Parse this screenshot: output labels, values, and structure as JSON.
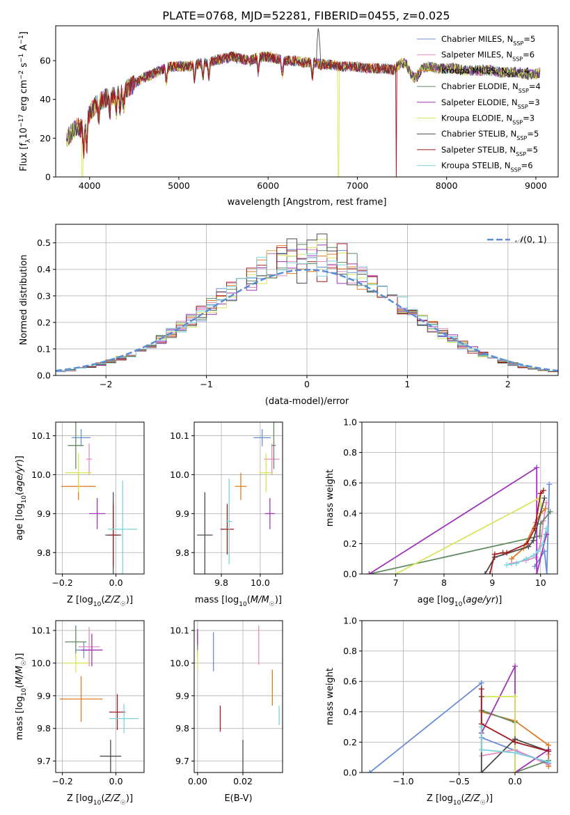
{
  "figure": {
    "title": "PLATE=0768, MJD=52281, FIBERID=0455, z=0.025"
  },
  "colors": {
    "chabrier_miles": "#6a8fd8",
    "salpeter_miles": "#e889c0",
    "kroupa_miles": "#dd7a22",
    "chabrier_elodie": "#5f8a62",
    "salpeter_elodie": "#9f34b8",
    "kroupa_elodie": "#d8e45a",
    "chabrier_stelib": "#4a4a4a",
    "salpeter_stelib": "#a11a1e",
    "kroupa_stelib": "#7bd4dc",
    "normal_line": "#5b8cd6",
    "grid": "#b0b0b0"
  },
  "chart_data": [
    {
      "id": "spectrum",
      "type": "line",
      "xlabel": "wavelength [Angstrom, rest frame]",
      "ylabel": "Flux [f_λ 10^-17 erg cm^-2 s^-1 A^-1]",
      "xlim": [
        3620,
        9250
      ],
      "ylim": [
        0,
        78
      ],
      "xticks": [
        4000,
        5000,
        6000,
        7000,
        8000,
        9000
      ],
      "yticks": [
        0,
        20,
        40,
        60
      ],
      "grid": false,
      "legend_position": "top-right",
      "continuum": {
        "x": [
          3750,
          3800,
          3850,
          3900,
          3950,
          4000,
          4100,
          4200,
          4300,
          4400,
          4500,
          4600,
          4700,
          4800,
          4900,
          5000,
          5100,
          5200,
          5300,
          5400,
          5500,
          5600,
          5700,
          5800,
          5900,
          6000,
          6100,
          6200,
          6300,
          6400,
          6500,
          6600,
          6700,
          6800,
          6900,
          7000,
          7100,
          7200,
          7300,
          7400,
          7500,
          7600,
          7700,
          7800,
          7900,
          8000,
          8100,
          8200,
          8300,
          8400,
          8500,
          8600,
          8700,
          8800,
          8900,
          9000,
          9050
        ],
        "y": [
          20,
          23,
          26,
          25,
          28,
          33,
          39,
          41,
          42,
          45,
          48,
          51,
          53,
          55,
          57,
          57,
          57,
          58,
          59,
          60,
          61,
          62,
          61,
          60,
          62,
          62,
          61,
          60,
          60,
          59,
          59,
          58,
          58,
          57,
          57,
          57,
          56,
          56,
          56,
          55,
          59,
          58,
          56,
          57,
          56,
          56,
          56,
          55,
          55,
          55,
          55,
          54,
          54,
          54,
          53,
          53,
          54
        ]
      },
      "series": [
        {
          "name": "Chabrier MILES, N_SSP=5",
          "color_key": "chabrier_miles"
        },
        {
          "name": "Salpeter MILES, N_SSP=6",
          "color_key": "salpeter_miles"
        },
        {
          "name": "Kroupa MILES, N_SSP=4",
          "color_key": "kroupa_miles"
        },
        {
          "name": "Chabrier ELODIE, N_SSP=4",
          "color_key": "chabrier_elodie"
        },
        {
          "name": "Salpeter ELODIE, N_SSP=3",
          "color_key": "salpeter_elodie"
        },
        {
          "name": "Kroupa ELODIE, N_SSP=3",
          "color_key": "kroupa_elodie"
        },
        {
          "name": "Chabrier STELIB, N_SSP=5",
          "color_key": "chabrier_stelib"
        },
        {
          "name": "Salpeter STELIB, N_SSP=5",
          "color_key": "salpeter_stelib"
        },
        {
          "name": "Kroupa STELIB, N_SSP=6",
          "color_key": "kroupa_stelib"
        }
      ],
      "features": {
        "kroupa_elodie_dropouts": [
          3920,
          6790
        ],
        "salpeter_stelib_dropout": 7430,
        "chabrier_stelib_halpha_peak": [
          6563,
          78
        ]
      }
    },
    {
      "id": "residuals",
      "type": "line",
      "xlabel": "(data-model)/error",
      "ylabel": "Normed distribution",
      "xlim": [
        -2.5,
        2.5
      ],
      "ylim": [
        0,
        0.57
      ],
      "xticks": [
        -2,
        -1,
        0,
        1,
        2
      ],
      "yticks": [
        0.0,
        0.1,
        0.2,
        0.3,
        0.4,
        0.5
      ],
      "grid": true,
      "legend_position": "top-right",
      "legend": "N(0, 1)",
      "bin_width": 0.1
    },
    {
      "id": "age_vs_Z",
      "type": "scatter",
      "xlabel": "Z [log10(Z/Z☉)]",
      "ylabel": "age  [log10(age/yr)]",
      "xlim": [
        -0.225,
        0.105
      ],
      "ylim": [
        9.745,
        10.135
      ],
      "xticks": [
        -0.2,
        0.0
      ],
      "xticklabels": [
        "−0.2",
        "0.0"
      ],
      "yticks": [
        9.8,
        9.9,
        10.0,
        10.1
      ],
      "points": [
        {
          "x": -0.13,
          "xerr": 0.035,
          "y": 10.095,
          "yerr": 0.022,
          "color_key": "chabrier_miles"
        },
        {
          "x": -0.1,
          "xerr": 0.01,
          "y": 10.04,
          "yerr": 0.04,
          "color_key": "salpeter_miles"
        },
        {
          "x": -0.14,
          "xerr": 0.065,
          "y": 9.97,
          "yerr": 0.035,
          "color_key": "kroupa_miles"
        },
        {
          "x": -0.15,
          "xerr": 0.03,
          "y": 10.075,
          "yerr": 0.06,
          "color_key": "chabrier_elodie"
        },
        {
          "x": -0.07,
          "xerr": 0.03,
          "y": 9.9,
          "yerr": 0.04,
          "color_key": "salpeter_elodie"
        },
        {
          "x": -0.14,
          "xerr": 0.05,
          "y": 10.005,
          "yerr": 0.05,
          "color_key": "kroupa_elodie"
        },
        {
          "x": -0.01,
          "xerr": 0.03,
          "y": 9.845,
          "yerr": 0.11,
          "color_key": "chabrier_stelib"
        },
        {
          "x": -0.01,
          "xerr": 0.02,
          "y": 9.845,
          "yerr": 0.08,
          "color_key": "salpeter_stelib"
        },
        {
          "x": 0.025,
          "xerr": 0.055,
          "y": 9.86,
          "yerr": 0.125,
          "color_key": "kroupa_stelib"
        }
      ]
    },
    {
      "id": "age_vs_mass",
      "type": "scatter",
      "xlabel": "mass [log10(M/M☉)]",
      "ylabel": "",
      "xlim": [
        9.66,
        10.115
      ],
      "ylim": [
        9.745,
        10.135
      ],
      "xticks": [
        9.8,
        10.0
      ],
      "xticklabels": [
        "9.8",
        "10.0"
      ],
      "yticks": [
        9.8,
        9.9,
        10.0,
        10.1
      ],
      "points": [
        {
          "x": 10.01,
          "xerr": 0.045,
          "y": 10.095,
          "yerr": 0.022,
          "color_key": "chabrier_miles"
        },
        {
          "x": 10.06,
          "xerr": 0.04,
          "y": 10.04,
          "yerr": 0.04,
          "color_key": "salpeter_miles"
        },
        {
          "x": 9.9,
          "xerr": 0.03,
          "y": 9.97,
          "yerr": 0.035,
          "color_key": "kroupa_miles"
        },
        {
          "x": 10.07,
          "xerr": 0.01,
          "y": 10.075,
          "yerr": 0.06,
          "color_key": "chabrier_elodie"
        },
        {
          "x": 10.05,
          "xerr": 0.025,
          "y": 9.9,
          "yerr": 0.04,
          "color_key": "salpeter_elodie"
        },
        {
          "x": 10.03,
          "xerr": 0.035,
          "y": 10.005,
          "yerr": 0.05,
          "color_key": "kroupa_elodie"
        },
        {
          "x": 9.715,
          "xerr": 0.04,
          "y": 9.845,
          "yerr": 0.11,
          "color_key": "chabrier_stelib"
        },
        {
          "x": 9.83,
          "xerr": 0.035,
          "y": 9.86,
          "yerr": 0.065,
          "color_key": "salpeter_stelib"
        },
        {
          "x": 9.84,
          "xerr": 0.015,
          "y": 9.88,
          "yerr": 0.11,
          "color_key": "kroupa_stelib"
        }
      ]
    },
    {
      "id": "mass_weight_vs_age",
      "type": "line",
      "xlabel": "age  [log10(age/yr)]",
      "ylabel": "mass weight",
      "xlim": [
        6.3,
        10.35
      ],
      "ylim": [
        0,
        1.0
      ],
      "xticks": [
        7,
        8,
        9,
        10
      ],
      "yticks": [
        0.0,
        0.2,
        0.4,
        0.6,
        0.8,
        1.0
      ],
      "grid": true,
      "series": [
        {
          "color_key": "chabrier_miles",
          "x": [
            9.88,
            10.08,
            10.13,
            10.18
          ],
          "y": [
            0.05,
            0.15,
            0.0,
            0.59
          ]
        },
        {
          "color_key": "salpeter_miles",
          "x": [
            9.4,
            9.7,
            9.9,
            10.0,
            10.06,
            10.12
          ],
          "y": [
            0.07,
            0.09,
            0.11,
            0.2,
            0.35,
            0.47
          ]
        },
        {
          "color_key": "kroupa_miles",
          "x": [
            9.4,
            9.65,
            9.9,
            10.0,
            10.1
          ],
          "y": [
            0.1,
            0.17,
            0.34,
            0.4,
            0.43
          ]
        },
        {
          "color_key": "chabrier_elodie",
          "x": [
            6.45,
            9.98,
            10.0,
            10.2
          ],
          "y": [
            0.0,
            0.25,
            0.33,
            0.41
          ]
        },
        {
          "color_key": "salpeter_elodie",
          "x": [
            6.45,
            9.92,
            9.92,
            10.12
          ],
          "y": [
            0.0,
            0.7,
            0.0,
            0.26
          ]
        },
        {
          "color_key": "kroupa_elodie",
          "x": [
            7.0,
            9.98,
            10.02
          ],
          "y": [
            0.0,
            0.5,
            0.45
          ]
        },
        {
          "color_key": "chabrier_stelib",
          "x": [
            8.85,
            9.05,
            9.75,
            9.85,
            10.08
          ],
          "y": [
            0.0,
            0.11,
            0.18,
            0.22,
            0.5
          ]
        },
        {
          "color_key": "salpeter_stelib",
          "x": [
            8.95,
            9.05,
            9.22,
            9.3,
            9.72,
            9.88,
            10.0,
            10.06
          ],
          "y": [
            0.0,
            0.13,
            0.14,
            0.14,
            0.2,
            0.3,
            0.53,
            0.55
          ]
        },
        {
          "color_key": "kroupa_stelib",
          "x": [
            9.3,
            9.5,
            9.7,
            9.85,
            9.95,
            10.05,
            10.12
          ],
          "y": [
            0.06,
            0.07,
            0.1,
            0.12,
            0.15,
            0.2,
            0.3
          ]
        }
      ]
    },
    {
      "id": "mass_vs_Z",
      "type": "scatter",
      "xlabel": "Z [log10(Z/Z☉)]",
      "ylabel": "mass [log10(M/M☉)]",
      "xlim": [
        -0.225,
        0.105
      ],
      "ylim": [
        9.665,
        10.13
      ],
      "xticks": [
        -0.2,
        0.0
      ],
      "xticklabels": [
        "−0.2",
        "0.0"
      ],
      "yticks": [
        9.7,
        9.8,
        9.9,
        10.0,
        10.1
      ],
      "points": [
        {
          "x": -0.12,
          "xerr": 0.03,
          "y": 10.04,
          "yerr": 0.025,
          "color_key": "chabrier_miles"
        },
        {
          "x": -0.1,
          "xerr": 0.04,
          "y": 10.05,
          "yerr": 0.06,
          "color_key": "salpeter_miles"
        },
        {
          "x": -0.13,
          "xerr": 0.08,
          "y": 9.89,
          "yerr": 0.07,
          "color_key": "kroupa_miles"
        },
        {
          "x": -0.15,
          "xerr": 0.04,
          "y": 10.065,
          "yerr": 0.05,
          "color_key": "chabrier_elodie"
        },
        {
          "x": -0.09,
          "xerr": 0.04,
          "y": 10.04,
          "yerr": 0.05,
          "color_key": "salpeter_elodie"
        },
        {
          "x": -0.15,
          "xerr": 0.05,
          "y": 10.0,
          "yerr": 0.03,
          "color_key": "kroupa_elodie"
        },
        {
          "x": -0.02,
          "xerr": 0.04,
          "y": 9.715,
          "yerr": 0.05,
          "color_key": "chabrier_stelib"
        },
        {
          "x": 0.005,
          "xerr": 0.03,
          "y": 9.85,
          "yerr": 0.055,
          "color_key": "salpeter_stelib"
        },
        {
          "x": 0.03,
          "xerr": 0.055,
          "y": 9.83,
          "yerr": 0.045,
          "color_key": "kroupa_stelib"
        }
      ]
    },
    {
      "id": "mass_vs_ebv",
      "type": "scatter",
      "xlabel": "E(B-V)",
      "ylabel": "",
      "xlim": [
        -0.0015,
        0.0375
      ],
      "ylim": [
        9.665,
        10.13
      ],
      "xticks": [
        0.0,
        0.02
      ],
      "xticklabels": [
        "0.00",
        "0.02"
      ],
      "yticks": [
        9.7,
        9.8,
        9.9,
        10.0,
        10.1
      ],
      "points": [
        {
          "x": 0.007,
          "xerr": 0,
          "y": 10.035,
          "yerr": 0.06,
          "color_key": "chabrier_miles"
        },
        {
          "x": 0.027,
          "xerr": 0,
          "y": 10.055,
          "yerr": 0.06,
          "color_key": "salpeter_miles"
        },
        {
          "x": 0.033,
          "xerr": 0,
          "y": 9.925,
          "yerr": 0.055,
          "color_key": "kroupa_miles"
        },
        {
          "x": 0.0,
          "xerr": 0,
          "y": 10.06,
          "yerr": 0.04,
          "color_key": "chabrier_elodie"
        },
        {
          "x": 0.0,
          "xerr": 0,
          "y": 10.08,
          "yerr": 0.025,
          "color_key": "salpeter_elodie"
        },
        {
          "x": 0.0,
          "xerr": 0,
          "y": 10.01,
          "yerr": 0.03,
          "color_key": "kroupa_elodie"
        },
        {
          "x": 0.02,
          "xerr": 0,
          "y": 9.715,
          "yerr": 0.05,
          "color_key": "chabrier_stelib"
        },
        {
          "x": 0.01,
          "xerr": 0,
          "y": 9.83,
          "yerr": 0.04,
          "color_key": "salpeter_stelib"
        },
        {
          "x": 0.036,
          "xerr": 0,
          "y": 9.84,
          "yerr": 0.03,
          "color_key": "kroupa_stelib"
        }
      ]
    },
    {
      "id": "mass_weight_vs_Z",
      "type": "line",
      "xlabel": "Z [log10(Z/Z☉)]",
      "ylabel": "mass weight",
      "xlim": [
        -1.37,
        0.38
      ],
      "ylim": [
        0,
        1.0
      ],
      "xticks": [
        -1.0,
        -0.5,
        0.0
      ],
      "xticklabels": [
        "−1.0",
        "−0.5",
        "0.0"
      ],
      "yticks": [
        0.0,
        0.2,
        0.4,
        0.6,
        0.8,
        1.0
      ],
      "grid": true,
      "series": [
        {
          "color_key": "chabrier_miles",
          "x": [
            -1.3,
            -0.3,
            -0.3,
            0.3
          ],
          "y": [
            0.0,
            0.59,
            0.23,
            0.06
          ]
        },
        {
          "color_key": "salpeter_miles",
          "x": [
            -0.3,
            0.0,
            0.3,
            0.3
          ],
          "y": [
            0.11,
            0.15,
            0.05,
            0.12
          ]
        },
        {
          "color_key": "kroupa_miles",
          "x": [
            -0.3,
            0.0,
            0.3,
            0.3
          ],
          "y": [
            0.4,
            0.34,
            0.18,
            0.04
          ]
        },
        {
          "color_key": "chabrier_elodie",
          "x": [
            -0.3,
            0.0,
            0.0,
            0.3
          ],
          "y": [
            0.41,
            0.33,
            0.0,
            0.08
          ]
        },
        {
          "color_key": "salpeter_elodie",
          "x": [
            -0.3,
            0.0,
            0.0,
            0.3
          ],
          "y": [
            0.26,
            0.7,
            0.0,
            0.15
          ]
        },
        {
          "color_key": "kroupa_elodie",
          "x": [
            -0.3,
            -0.3,
            0.0,
            0.0
          ],
          "y": [
            0.0,
            0.5,
            0.5,
            0.0
          ]
        },
        {
          "color_key": "chabrier_stelib",
          "x": [
            -0.3,
            -0.3,
            0.0,
            0.3
          ],
          "y": [
            0.5,
            0.0,
            0.22,
            0.14
          ]
        },
        {
          "color_key": "salpeter_stelib",
          "x": [
            -0.3,
            -0.3,
            0.0,
            0.3
          ],
          "y": [
            0.55,
            0.32,
            0.2,
            0.14
          ]
        },
        {
          "color_key": "kroupa_stelib",
          "x": [
            -0.3,
            -0.3,
            0.0,
            0.3
          ],
          "y": [
            0.3,
            0.15,
            0.13,
            0.07
          ]
        }
      ]
    }
  ]
}
